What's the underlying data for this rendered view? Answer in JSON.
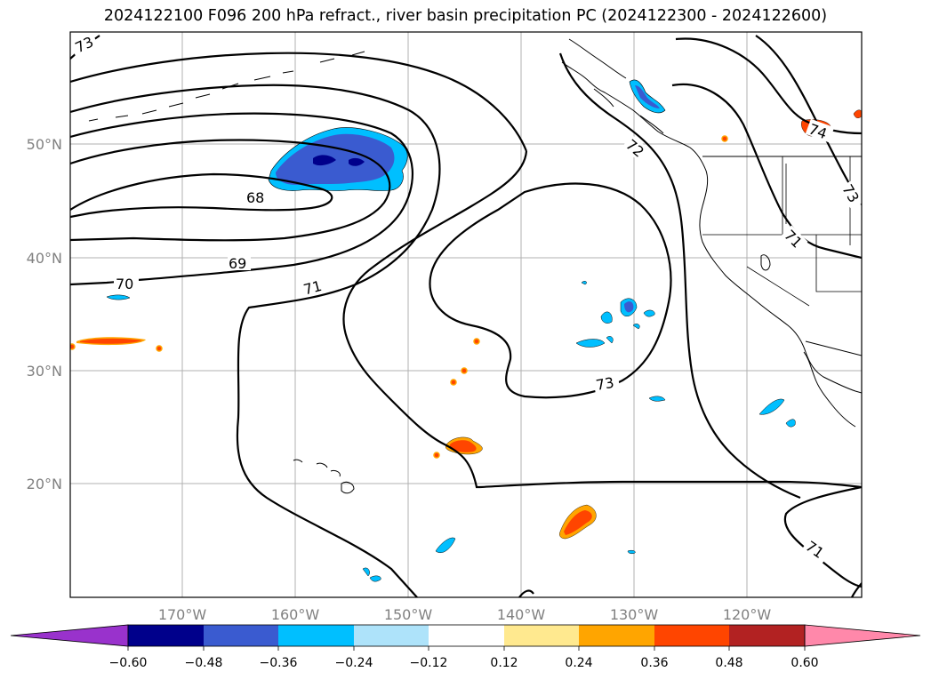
{
  "title": "2024122100 F096 200 hPa refract., river basin precipitation PC (2024122300 - 2024122600)",
  "axes": {
    "lon_ticks": [
      "170°W",
      "160°W",
      "150°W",
      "140°W",
      "130°W",
      "120°W"
    ],
    "lat_ticks": [
      "50°N",
      "40°N",
      "30°N",
      "20°N"
    ]
  },
  "contour_labels": [
    "73",
    "68",
    "69",
    "70",
    "71",
    "72",
    "73",
    "74",
    "73",
    "71",
    "71"
  ],
  "colorbar": {
    "ticks": [
      "−0.60",
      "−0.48",
      "−0.36",
      "−0.24",
      "−0.12",
      "0.12",
      "0.24",
      "0.36",
      "0.48",
      "0.60"
    ],
    "colors": [
      "#9932cc",
      "#00008b",
      "#3a5bd0",
      "#00bfff",
      "#aee3fa",
      "#ffffff",
      "#ffe98f",
      "#ffa500",
      "#ff4500",
      "#b22222",
      "#ff88aa"
    ]
  }
}
